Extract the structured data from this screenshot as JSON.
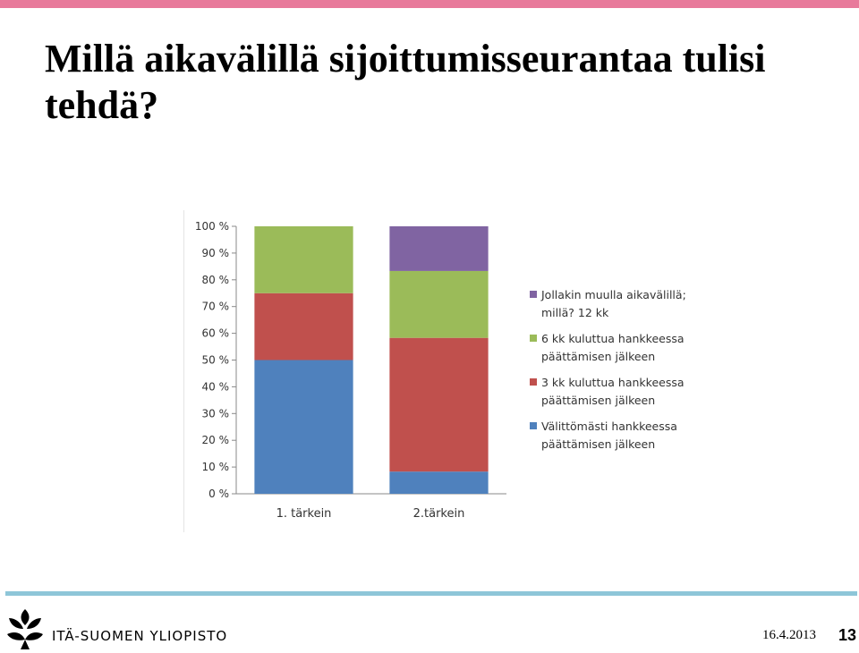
{
  "slide": {
    "title": "Millä aikavälillä sijoittumisseurantaa tulisi tehdä?",
    "organization": "ITÄ-SUOMEN YLIOPISTO",
    "date": "16.4.2013",
    "page_number": "13",
    "colors": {
      "top_bar": "#e87a9b",
      "bottom_bar": "#8ec6d8"
    }
  },
  "chart_data": {
    "type": "bar",
    "stacked": true,
    "percent_stacked": true,
    "categories": [
      "1. tärkein",
      "2.tärkein"
    ],
    "y_ticks": [
      "0 %",
      "10 %",
      "20 %",
      "30 %",
      "40 %",
      "50 %",
      "60 %",
      "70 %",
      "80 %",
      "90 %",
      "100 %"
    ],
    "ylim": [
      0,
      100
    ],
    "grid": false,
    "legend_position": "right",
    "series": [
      {
        "name": "Välittömästi  hankkeessa päättämisen jälkeen",
        "values": [
          50,
          8.3
        ],
        "color": "#4f81bd"
      },
      {
        "name": "3 kk kuluttua hankkeessa päättämisen jälkeen",
        "values": [
          25,
          50
        ],
        "color": "#c0504d"
      },
      {
        "name": "6 kk kuluttua hankkeessa päättämisen jälkeen",
        "values": [
          25,
          25
        ],
        "color": "#9bbb59"
      },
      {
        "name": "Jollakin muulla aikavälillä; millä? 12 kk",
        "values": [
          0,
          16.7
        ],
        "color": "#8064a2"
      }
    ]
  }
}
